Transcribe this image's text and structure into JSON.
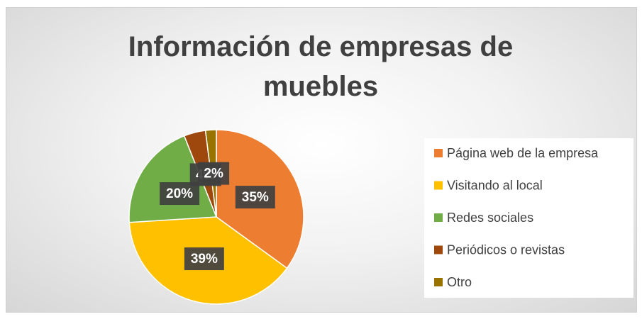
{
  "chart_data": {
    "type": "pie",
    "title": "Información de empresas de muebles",
    "categories": [
      "Página web de la empresa",
      "Visitando al local",
      "Redes sociales",
      "Periódicos o revistas",
      "Otro"
    ],
    "values": [
      35,
      39,
      20,
      4,
      2
    ],
    "value_labels": [
      "35%",
      "39%",
      "20%",
      "4%",
      "2%"
    ],
    "colors": [
      "#ed7d31",
      "#ffc000",
      "#70ad47",
      "#9e480e",
      "#997300"
    ],
    "legend": "right"
  }
}
